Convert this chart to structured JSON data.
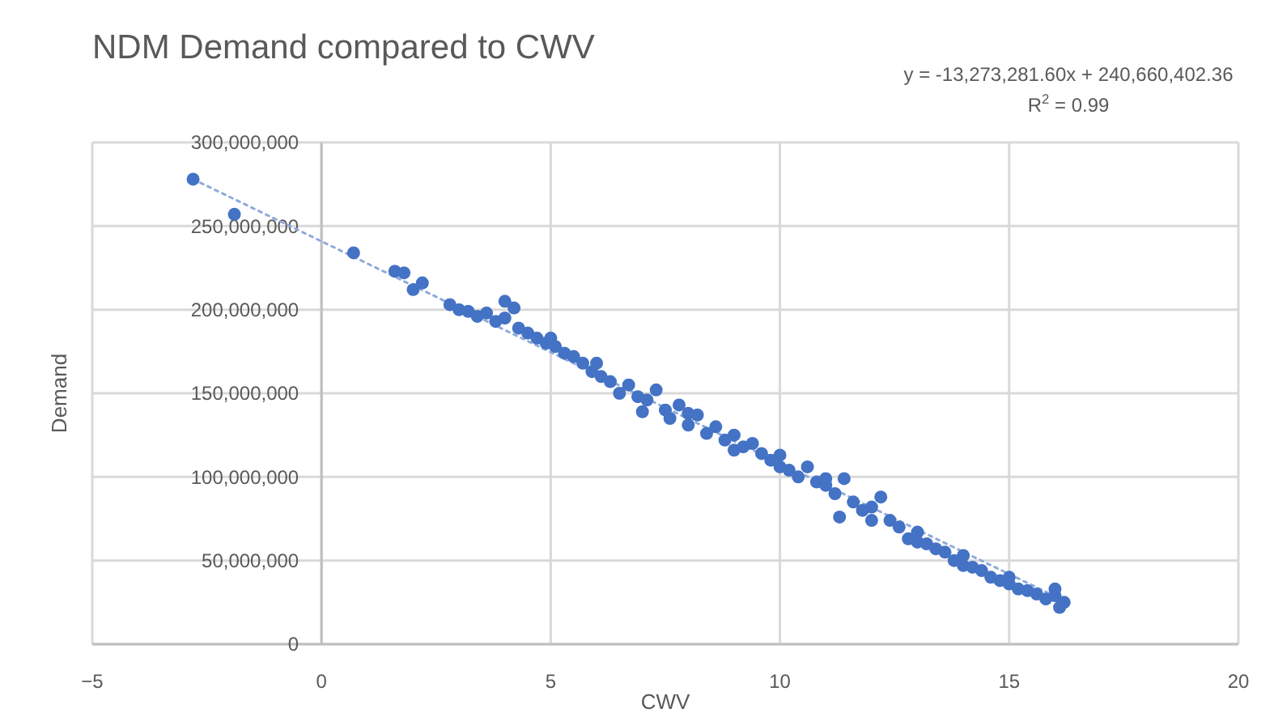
{
  "chart_data": {
    "type": "scatter",
    "title": "NDM Demand compared to CWV",
    "xlabel": "CWV",
    "ylabel": "Demand",
    "annotations": [
      "y = -13,273,281.60x + 240,660,402.36",
      "R$^{2}$ = 0.99"
    ],
    "xlim": [
      -5,
      20
    ],
    "xticks": [
      -5,
      0,
      5,
      10,
      15,
      20
    ],
    "ylim": [
      0,
      300000000
    ],
    "yticks": [
      0,
      {
        "value": 50000000,
        "label": "50,000,000"
      },
      {
        "value": 100000000,
        "label": "100,000,000"
      },
      {
        "value": 150000000,
        "label": "150,000,000"
      },
      {
        "value": 200000000,
        "label": "200,000,000"
      },
      {
        "value": 250000000,
        "label": "250,000,000"
      },
      {
        "value": 300000000,
        "label": "300,000,000"
      }
    ],
    "grid": true,
    "series": [
      {
        "marker": "circle",
        "color": "#4472c4",
        "x": [
          -2.8,
          -1.9,
          0.7,
          1.6,
          1.8,
          2.0,
          2.2,
          2.8,
          3.0,
          3.2,
          3.4,
          3.6,
          3.8,
          4.0,
          4.0,
          4.2,
          4.3,
          4.5,
          4.7,
          4.9,
          5.0,
          5.1,
          5.3,
          5.5,
          5.7,
          5.9,
          6.0,
          6.1,
          6.3,
          6.5,
          6.7,
          6.9,
          7.0,
          7.1,
          7.3,
          7.5,
          7.6,
          7.8,
          8.0,
          8.0,
          8.2,
          8.4,
          8.6,
          8.8,
          9.0,
          9.0,
          9.2,
          9.4,
          9.6,
          9.8,
          10.0,
          10.0,
          10.2,
          10.4,
          10.6,
          10.8,
          11.0,
          11.0,
          11.2,
          11.3,
          11.4,
          11.6,
          11.8,
          12.0,
          12.0,
          12.2,
          12.4,
          12.6,
          12.8,
          13.0,
          13.0,
          13.2,
          13.4,
          13.6,
          13.8,
          14.0,
          14.0,
          14.2,
          14.4,
          14.6,
          14.8,
          15.0,
          15.0,
          15.2,
          15.4,
          15.6,
          15.8,
          16.0,
          16.0,
          16.1,
          16.2
        ],
        "values": [
          278000000,
          257000000,
          234000000,
          223000000,
          222000000,
          212000000,
          216000000,
          203000000,
          200000000,
          199000000,
          196000000,
          198000000,
          193000000,
          195000000,
          205000000,
          201000000,
          189000000,
          186000000,
          183000000,
          180000000,
          183000000,
          178000000,
          174000000,
          172000000,
          168000000,
          163000000,
          168000000,
          160000000,
          157000000,
          150000000,
          155000000,
          148000000,
          139000000,
          146000000,
          152000000,
          140000000,
          135000000,
          143000000,
          131000000,
          138000000,
          137000000,
          126000000,
          130000000,
          122000000,
          125000000,
          116000000,
          118000000,
          120000000,
          114000000,
          110000000,
          113000000,
          106000000,
          104000000,
          100000000,
          106000000,
          97000000,
          95000000,
          99000000,
          90000000,
          76000000,
          99000000,
          85000000,
          80000000,
          82000000,
          74000000,
          88000000,
          74000000,
          70000000,
          63000000,
          67000000,
          61000000,
          60000000,
          57000000,
          55000000,
          50000000,
          53000000,
          47000000,
          46000000,
          44000000,
          40000000,
          38000000,
          36000000,
          40000000,
          33000000,
          32000000,
          30000000,
          27000000,
          29000000,
          33000000,
          22000000,
          25000000
        ]
      },
      {
        "type": "line",
        "marker": "none",
        "color": "#8faadc",
        "line_style": "dotted",
        "x": [
          -2.8,
          16.2
        ],
        "values": [
          278000000,
          26000000
        ]
      }
    ]
  }
}
